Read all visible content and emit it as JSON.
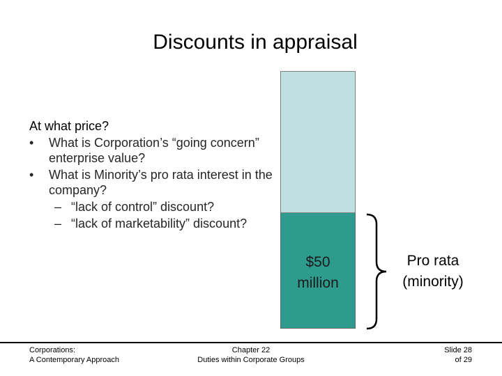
{
  "slide": {
    "title": "Discounts in appraisal",
    "question": "At what price?",
    "bullets": [
      "What is Corporation’s “going concern” enterprise value?",
      "What is Minority’s pro rata interest in the company?"
    ],
    "sub_bullets": [
      "“lack of control” discount?",
      "“lack of marketability” discount?"
    ],
    "bullet_symbol": "•",
    "dash_symbol": "–"
  },
  "diagram": {
    "amount_line1": "$50",
    "amount_line2": "million",
    "label_line1": "Pro rata",
    "label_line2": "(minority)",
    "top_color": "#bfe0e0",
    "bottom_color": "#2e9b8f"
  },
  "footer": {
    "left_line1": "Corporations:",
    "left_line2": "A Contemporary Approach",
    "center_line1": "Chapter 22",
    "center_line2": "Duties within Corporate Groups",
    "right_line1": "Slide 28",
    "right_line2": "of 29"
  }
}
